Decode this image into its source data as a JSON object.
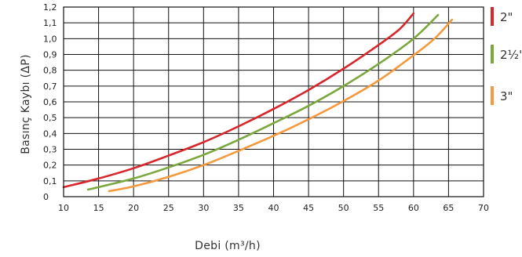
{
  "chart_data": {
    "type": "line",
    "title": "",
    "xlabel": "Debi (m³/h)",
    "ylabel": "Basınç Kaybı (ΔP)",
    "xlim": [
      10,
      70
    ],
    "ylim": [
      0,
      1.2
    ],
    "x_ticks": [
      10,
      15,
      20,
      25,
      30,
      35,
      40,
      45,
      50,
      55,
      60,
      65,
      70
    ],
    "x_tick_labels": [
      "10",
      "15",
      "20",
      "25",
      "30",
      "35",
      "40",
      "45",
      "50",
      "55",
      "60",
      "65",
      "70"
    ],
    "y_ticks": [
      0,
      0.1,
      0.2,
      0.3,
      0.4,
      0.5,
      0.6,
      0.7,
      0.8,
      0.9,
      1.0,
      1.1,
      1.2
    ],
    "y_tick_labels": [
      "0",
      "0,1",
      "0,2",
      "0,3",
      "0,4",
      "0,5",
      "0,6",
      "0,7",
      "0,8",
      "0,9",
      "1,0",
      "1,1",
      "1,2"
    ],
    "grid": true,
    "legend_position": "right",
    "series": [
      {
        "name": "2\"",
        "color": "#d7262c",
        "points": [
          {
            "x": 10,
            "y": 0.06
          },
          {
            "x": 15,
            "y": 0.115
          },
          {
            "x": 20,
            "y": 0.18
          },
          {
            "x": 25,
            "y": 0.26
          },
          {
            "x": 30,
            "y": 0.345
          },
          {
            "x": 35,
            "y": 0.445
          },
          {
            "x": 40,
            "y": 0.555
          },
          {
            "x": 45,
            "y": 0.675
          },
          {
            "x": 50,
            "y": 0.81
          },
          {
            "x": 55,
            "y": 0.96
          },
          {
            "x": 58,
            "y": 1.06
          },
          {
            "x": 60,
            "y": 1.16
          }
        ]
      },
      {
        "name": "2½\"",
        "color": "#7aa83c",
        "points": [
          {
            "x": 13.5,
            "y": 0.045
          },
          {
            "x": 15,
            "y": 0.06
          },
          {
            "x": 20,
            "y": 0.115
          },
          {
            "x": 25,
            "y": 0.185
          },
          {
            "x": 30,
            "y": 0.265
          },
          {
            "x": 35,
            "y": 0.36
          },
          {
            "x": 40,
            "y": 0.465
          },
          {
            "x": 45,
            "y": 0.575
          },
          {
            "x": 50,
            "y": 0.7
          },
          {
            "x": 55,
            "y": 0.84
          },
          {
            "x": 60,
            "y": 1.0
          },
          {
            "x": 63.5,
            "y": 1.15
          }
        ]
      },
      {
        "name": "3\"",
        "color": "#f39a3e",
        "points": [
          {
            "x": 16.5,
            "y": 0.035
          },
          {
            "x": 20,
            "y": 0.065
          },
          {
            "x": 25,
            "y": 0.125
          },
          {
            "x": 30,
            "y": 0.2
          },
          {
            "x": 35,
            "y": 0.29
          },
          {
            "x": 40,
            "y": 0.385
          },
          {
            "x": 45,
            "y": 0.49
          },
          {
            "x": 50,
            "y": 0.605
          },
          {
            "x": 55,
            "y": 0.735
          },
          {
            "x": 60,
            "y": 0.895
          },
          {
            "x": 63,
            "y": 1.0
          },
          {
            "x": 65.5,
            "y": 1.12
          }
        ]
      }
    ]
  }
}
